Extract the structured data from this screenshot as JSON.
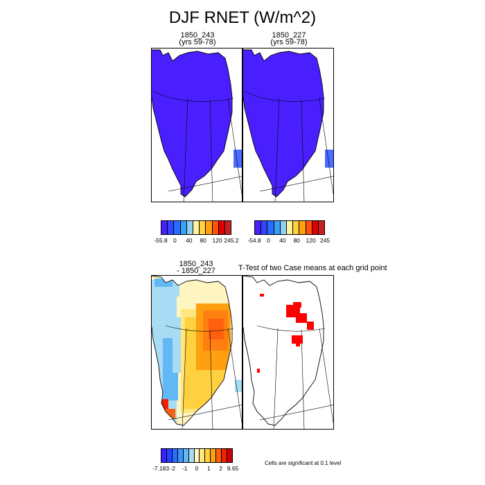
{
  "title": "DJF RNET (W/m^2)",
  "panels": {
    "a": {
      "line1": "1850_243",
      "line2": "(yrs 59-78)"
    },
    "b": {
      "line1": "1850_227",
      "line2": "(yrs 59-78)"
    },
    "diff": {
      "line1": "1850_243",
      "line2": "- 1850_227"
    },
    "ttest": {
      "title": "T-Test of two Case means at each grid point"
    }
  },
  "colorbars": {
    "a": {
      "colors": [
        "#4a1fff",
        "#3344ff",
        "#2a6cff",
        "#38a0f5",
        "#8fd0f0",
        "#fff3a0",
        "#ffd040",
        "#ffa010",
        "#ff5010",
        "#e00000",
        "#c82020"
      ],
      "labels": [
        "-55.8",
        "0",
        "40",
        "80",
        "120",
        "245.2"
      ]
    },
    "b": {
      "colors": [
        "#4a1fff",
        "#3344ff",
        "#2a6cff",
        "#38a0f5",
        "#8fd0f0",
        "#fff3a0",
        "#ffd040",
        "#ffa010",
        "#ff5010",
        "#e00000",
        "#c82020"
      ],
      "labels": [
        "-54.8",
        "0",
        "40",
        "80",
        "120",
        "245"
      ]
    },
    "diff": {
      "colors": [
        "#3a20ff",
        "#2840ff",
        "#2a6cff",
        "#3b95ff",
        "#62b8f5",
        "#a8dcf5",
        "#fff5c0",
        "#ffe680",
        "#ffd040",
        "#ffa010",
        "#ff6010",
        "#f02000",
        "#cc0000"
      ],
      "labels": [
        "-7.183",
        "-2",
        "-1",
        "0",
        "1",
        "2",
        "9.65"
      ]
    }
  },
  "significance_note": "Cells are significant at 0.1 level",
  "colors": {
    "blue_fill": "#4a1fff",
    "sig_red": "#ff0000"
  }
}
